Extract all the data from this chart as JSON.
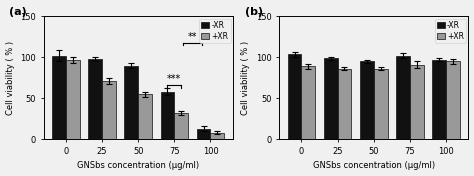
{
  "panel_a": {
    "label": "(a)",
    "categories": [
      0,
      25,
      50,
      75,
      100
    ],
    "xticklabels": [
      "0",
      "25",
      "50",
      "75",
      "100"
    ],
    "bar_minus_xr": [
      102,
      98,
      90,
      58,
      13
    ],
    "bar_plus_xr": [
      97,
      71,
      55,
      32,
      8
    ],
    "err_minus_xr": [
      7,
      3,
      3,
      4,
      3
    ],
    "err_plus_xr": [
      4,
      4,
      3,
      3,
      2
    ],
    "color_minus_xr": "#111111",
    "color_plus_xr": "#999999",
    "edgecolor": "#111111",
    "ylim": [
      0,
      150
    ],
    "yticks": [
      0,
      50,
      100,
      150
    ],
    "ylabel": "Cell viability ( % )",
    "xlabel": "GNSbs concentration (μg/ml)",
    "legend_labels": [
      "-XR",
      "+XR"
    ]
  },
  "panel_b": {
    "label": "(b)",
    "categories": [
      0,
      25,
      50,
      75,
      100
    ],
    "xticklabels": [
      "0",
      "25",
      "50",
      "75",
      "100"
    ],
    "bar_minus_xr": [
      104,
      99,
      95,
      102,
      97
    ],
    "bar_plus_xr": [
      89,
      86,
      86,
      91,
      95
    ],
    "err_minus_xr": [
      3,
      2,
      2,
      3,
      2
    ],
    "err_plus_xr": [
      3,
      2,
      2,
      4,
      3
    ],
    "color_minus_xr": "#111111",
    "color_plus_xr": "#999999",
    "edgecolor": "#111111",
    "ylim": [
      0,
      150
    ],
    "yticks": [
      0,
      50,
      100,
      150
    ],
    "ylabel": "Cell viability ( % )",
    "xlabel": "GNSbs concentration (μg/ml)",
    "legend_labels": [
      "-XR",
      "+XR"
    ]
  },
  "bar_width": 0.38,
  "figsize": [
    4.74,
    1.76
  ],
  "dpi": 100,
  "bg_color": "#f0f0f0"
}
